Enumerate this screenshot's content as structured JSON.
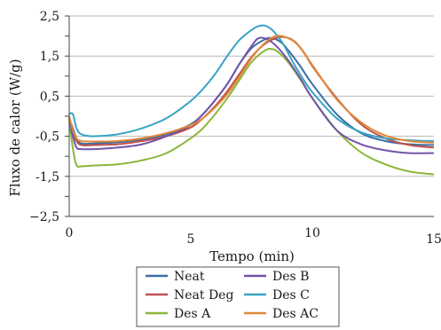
{
  "chart_data": {
    "type": "line",
    "title": "",
    "xlabel": "Tempo (min)",
    "ylabel": "Fluxo de calor (W/g)",
    "xlim": [
      0,
      15
    ],
    "ylim": [
      -2.5,
      2.5
    ],
    "x_ticks": [
      {
        "value": 0,
        "label": "0"
      },
      {
        "value": 5,
        "label": "5"
      },
      {
        "value": 10,
        "label": "10"
      },
      {
        "value": 15,
        "label": "15"
      }
    ],
    "y_ticks": [
      {
        "value": 2.5,
        "label": "2,5"
      },
      {
        "value": 1.5,
        "label": "1,5"
      },
      {
        "value": 0.5,
        "label": "0,5"
      },
      {
        "value": -0.5,
        "label": "-0,5"
      },
      {
        "value": -1.5,
        "label": "-1,5"
      },
      {
        "value": -2.5,
        "label": "−2,5"
      }
    ],
    "y_minor_ticks": [
      2.0,
      1.0,
      0.0,
      -1.0,
      -2.0
    ],
    "grid": "horizontal",
    "legend": "bottom",
    "series": [
      {
        "name": "Neat",
        "color": "#3a6ea5",
        "x": [
          0,
          0.15,
          0.3,
          0.5,
          1,
          2,
          3,
          4,
          5,
          5.5,
          6,
          6.5,
          7,
          7.5,
          8,
          8.3,
          8.7,
          9,
          9.5,
          10,
          11,
          12,
          13,
          14,
          15
        ],
        "y": [
          -0.05,
          -0.3,
          -0.55,
          -0.68,
          -0.68,
          -0.65,
          -0.58,
          -0.45,
          -0.2,
          0.05,
          0.4,
          0.8,
          1.3,
          1.7,
          1.9,
          1.95,
          1.85,
          1.65,
          1.25,
          0.8,
          0.05,
          -0.42,
          -0.62,
          -0.7,
          -0.72
        ]
      },
      {
        "name": "Neat Deg",
        "color": "#c0504d",
        "x": [
          0,
          0.15,
          0.3,
          0.5,
          1,
          2,
          3,
          4,
          5,
          5.5,
          6,
          6.5,
          7,
          7.5,
          8,
          8.5,
          8.9,
          9.3,
          9.7,
          10,
          11,
          12,
          13,
          14,
          15
        ],
        "y": [
          -0.05,
          -0.4,
          -0.62,
          -0.72,
          -0.72,
          -0.7,
          -0.62,
          -0.5,
          -0.28,
          -0.05,
          0.25,
          0.62,
          1.05,
          1.48,
          1.78,
          1.95,
          1.97,
          1.85,
          1.55,
          1.25,
          0.45,
          -0.2,
          -0.55,
          -0.72,
          -0.78
        ]
      },
      {
        "name": "Des A",
        "color": "#8cb63a",
        "x": [
          0,
          0.15,
          0.3,
          0.5,
          1,
          2,
          3,
          4,
          5,
          5.5,
          6,
          6.5,
          7,
          7.5,
          8,
          8.3,
          8.6,
          9,
          9.5,
          10,
          11,
          12,
          13,
          14,
          15
        ],
        "y": [
          -0.1,
          -0.8,
          -1.22,
          -1.25,
          -1.23,
          -1.2,
          -1.1,
          -0.92,
          -0.55,
          -0.3,
          0.05,
          0.45,
          0.9,
          1.35,
          1.62,
          1.68,
          1.6,
          1.35,
          0.92,
          0.45,
          -0.35,
          -0.9,
          -1.2,
          -1.38,
          -1.45
        ]
      },
      {
        "name": "Des B",
        "color": "#7254a8",
        "x": [
          0,
          0.15,
          0.3,
          0.5,
          1,
          2,
          3,
          4,
          5,
          5.5,
          6,
          6.5,
          7,
          7.5,
          7.8,
          8.2,
          8.6,
          9,
          9.5,
          10,
          11,
          12,
          13,
          14,
          15
        ],
        "y": [
          -0.05,
          -0.5,
          -0.78,
          -0.82,
          -0.82,
          -0.78,
          -0.7,
          -0.5,
          -0.22,
          0.05,
          0.4,
          0.8,
          1.3,
          1.75,
          1.95,
          1.9,
          1.7,
          1.4,
          0.95,
          0.45,
          -0.35,
          -0.7,
          -0.85,
          -0.92,
          -0.92
        ]
      },
      {
        "name": "Des C",
        "color": "#3ba3c4",
        "x": [
          0,
          0.15,
          0.3,
          0.5,
          1,
          2,
          3,
          4,
          5,
          5.5,
          6,
          6.5,
          7,
          7.5,
          7.8,
          8.1,
          8.4,
          8.8,
          9.2,
          9.6,
          10,
          11,
          12,
          13,
          14,
          15
        ],
        "y": [
          0.05,
          0.05,
          -0.3,
          -0.45,
          -0.5,
          -0.45,
          -0.3,
          -0.05,
          0.38,
          0.68,
          1.05,
          1.5,
          1.9,
          2.15,
          2.25,
          2.25,
          2.12,
          1.8,
          1.35,
          0.95,
          0.6,
          -0.05,
          -0.4,
          -0.55,
          -0.6,
          -0.62
        ]
      },
      {
        "name": "Des AC",
        "color": "#e0893a",
        "x": [
          0,
          0.15,
          0.3,
          0.5,
          1,
          2,
          3,
          4,
          5,
          5.5,
          6,
          6.5,
          7,
          7.5,
          8,
          8.5,
          9,
          9.4,
          9.8,
          10.2,
          11,
          12,
          13,
          14,
          15
        ],
        "y": [
          0.0,
          -0.35,
          -0.55,
          -0.62,
          -0.63,
          -0.62,
          -0.55,
          -0.42,
          -0.22,
          -0.05,
          0.22,
          0.55,
          0.98,
          1.45,
          1.8,
          2.0,
          1.95,
          1.78,
          1.45,
          1.1,
          0.42,
          -0.15,
          -0.48,
          -0.62,
          -0.66
        ]
      }
    ]
  }
}
